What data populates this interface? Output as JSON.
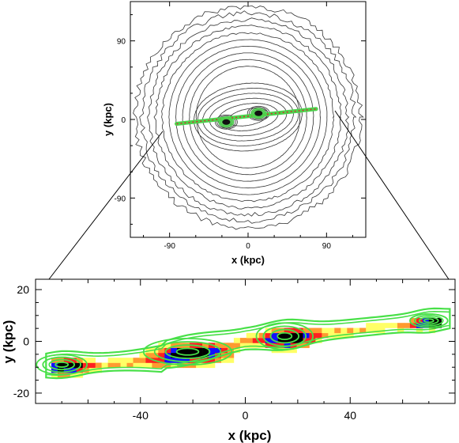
{
  "chart_data": [
    {
      "type": "scatter",
      "title": "",
      "xlabel": "x (kpc)",
      "ylabel": "y (kpc)",
      "xlim": [
        -135,
        135
      ],
      "ylim": [
        -135,
        135
      ],
      "xticks": [
        -90,
        0,
        90
      ],
      "yticks": [
        -90,
        0,
        90
      ],
      "grid": false,
      "description_series": [
        {
          "contour_levels": 16,
          "color": "#333333"
        },
        {
          "stream_color": "#4cd44c"
        }
      ],
      "cores": [
        {
          "x": -25,
          "y": -3
        },
        {
          "x": 12,
          "y": 7
        }
      ],
      "stream_endpoints": [
        [
          -82,
          -5
        ],
        [
          78,
          12
        ]
      ]
    },
    {
      "type": "heatmap",
      "title": "",
      "xlabel": "x (kpc)",
      "ylabel": "y (kpc)",
      "xlim": [
        -80,
        80
      ],
      "ylim": [
        -24,
        24
      ],
      "xticks": [
        -40,
        0,
        40
      ],
      "yticks": [
        -20,
        0,
        20
      ],
      "grid": false,
      "colors": {
        "low": "#ffff66",
        "mid": "#ff2020",
        "high": "#1010ff",
        "peak": "#000000",
        "contour": "#48e048"
      },
      "clumps": [
        {
          "x": -70,
          "y": -9,
          "w": 8,
          "h": 3
        },
        {
          "x": -22,
          "y": -4,
          "w": 14,
          "h": 4
        },
        {
          "x": 15,
          "y": 2,
          "w": 9,
          "h": 4
        },
        {
          "x": 70,
          "y": 8,
          "w": 6,
          "h": 2
        }
      ]
    }
  ]
}
